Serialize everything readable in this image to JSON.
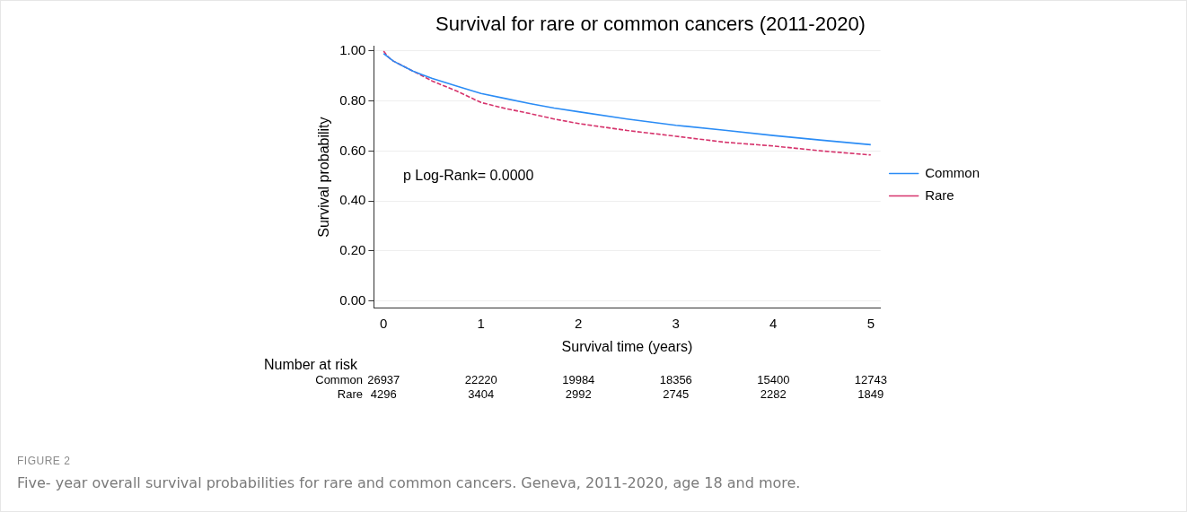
{
  "chart_data": {
    "type": "line",
    "title": "Survival for rare or common cancers (2011-2020)",
    "xlabel": "Survival time (years)",
    "ylabel": "Survival probability",
    "xlim": [
      -0.1,
      5.1
    ],
    "xticks": [
      0,
      1,
      2,
      3,
      4,
      5
    ],
    "ylim": [
      -0.03,
      1.02
    ],
    "yticks": [
      {
        "value": 0,
        "label": "0.00"
      },
      {
        "value": 0.2,
        "label": "0.20"
      },
      {
        "value": 0.4,
        "label": "0.40"
      },
      {
        "value": 0.6,
        "label": "0.60"
      },
      {
        "value": 0.8,
        "label": "0.80"
      },
      {
        "value": 1,
        "label": "1.00"
      }
    ],
    "grid": "y",
    "legend": "right",
    "marker": "none",
    "series": [
      {
        "name": "Common",
        "color": "#2b8cf5",
        "line_style": "solid",
        "x": [
          0,
          0.05,
          0.1,
          0.2,
          0.3,
          0.4,
          0.5,
          0.75,
          1,
          1.25,
          1.5,
          1.75,
          2,
          2.5,
          3,
          3.5,
          4,
          4.5,
          5
        ],
        "values": [
          0.99,
          0.975,
          0.96,
          0.94,
          0.92,
          0.905,
          0.89,
          0.86,
          0.83,
          0.81,
          0.79,
          0.772,
          0.757,
          0.728,
          0.703,
          0.683,
          0.662,
          0.643,
          0.625
        ]
      },
      {
        "name": "Rare",
        "color": "#d6336c",
        "line_style": "dashed",
        "x": [
          0,
          0.05,
          0.1,
          0.2,
          0.3,
          0.4,
          0.5,
          0.75,
          1,
          1.25,
          1.5,
          1.75,
          2,
          2.5,
          3,
          3.5,
          4,
          4.5,
          5
        ],
        "values": [
          1,
          0.975,
          0.96,
          0.94,
          0.92,
          0.9,
          0.88,
          0.84,
          0.794,
          0.77,
          0.75,
          0.728,
          0.71,
          0.682,
          0.659,
          0.635,
          0.62,
          0.6,
          0.584
        ]
      }
    ],
    "annotations": [
      "p Log-Rank= 0.0000",
      "Number at risk",
      "Common",
      "26937",
      "22220",
      "19984",
      "18356",
      "15400",
      "12743",
      "Rare",
      "4296",
      "3404",
      "2992",
      "2745",
      "2282",
      "1849",
      "FIGURE 2",
      "Five- year overall survival probabilities for rare and common cancers. Geneva, 2011-2020, age 18 and more."
    ]
  }
}
